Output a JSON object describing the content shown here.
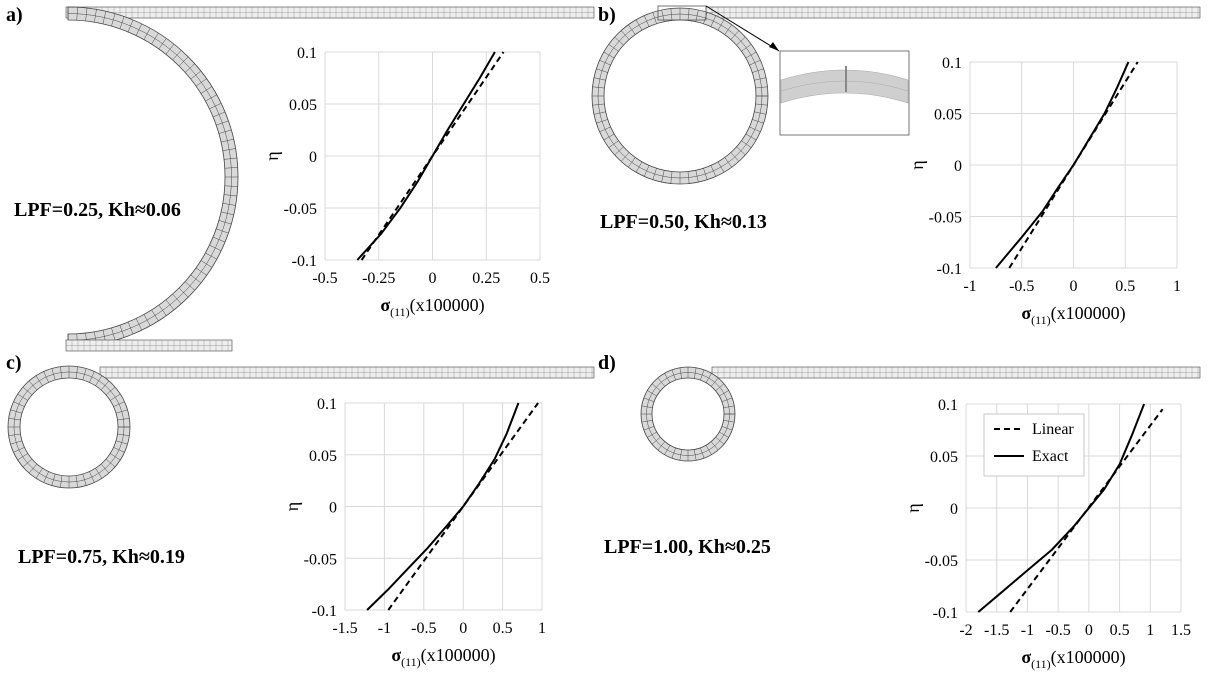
{
  "panels": [
    {
      "id": "a",
      "letter": "a)",
      "label": "LPF=0.25, Kh≈0.06"
    },
    {
      "id": "b",
      "letter": "b)",
      "label": "LPF=0.50, Kh≈0.13"
    },
    {
      "id": "c",
      "letter": "c)",
      "label": "LPF=0.75, Kh≈0.19"
    },
    {
      "id": "d",
      "letter": "d)",
      "label": "LPF=1.00, Kh≈0.25"
    }
  ],
  "colors": {
    "mesh_fill": "#d9d9d9",
    "mesh_line": "#444444",
    "grid": "#d9d9d9",
    "curve": "#000000"
  },
  "chart_data": [
    {
      "panel": "a",
      "type": "line",
      "xlabel_main": "σ",
      "xlabel_sub": "(11)",
      "xlabel_rest": "(x100000)",
      "ylabel": "η",
      "xlim": [
        -0.5,
        0.5
      ],
      "ylim": [
        -0.1,
        0.1
      ],
      "xticks": [
        -0.5,
        -0.25,
        0,
        0.25,
        0.5
      ],
      "xtick_labels": [
        "-0.5",
        "-0.25",
        "0",
        "0.25",
        "0.5"
      ],
      "yticks": [
        0.1,
        0.05,
        0,
        -0.05,
        -0.1
      ],
      "ytick_labels": [
        "0.1",
        "0.05",
        "0",
        "-0.05",
        "-0.1"
      ],
      "grid": true,
      "legend": false,
      "series": [
        {
          "name": "Linear",
          "style": "dashed",
          "points": [
            [
              -0.33,
              -0.1
            ],
            [
              0.33,
              0.1
            ]
          ]
        },
        {
          "name": "Exact",
          "style": "solid",
          "points": [
            [
              -0.35,
              -0.1
            ],
            [
              -0.24,
              -0.075
            ],
            [
              -0.15,
              -0.05
            ],
            [
              -0.07,
              -0.025
            ],
            [
              0,
              0
            ],
            [
              0.07,
              0.025
            ],
            [
              0.145,
              0.05
            ],
            [
              0.22,
              0.075
            ],
            [
              0.29,
              0.1
            ]
          ]
        }
      ]
    },
    {
      "panel": "b",
      "type": "line",
      "xlabel_main": "σ",
      "xlabel_sub": "(11)",
      "xlabel_rest": "(x100000)",
      "ylabel": "η",
      "xlim": [
        -1,
        1
      ],
      "ylim": [
        -0.1,
        0.1
      ],
      "xticks": [
        -1,
        -0.5,
        0,
        0.5,
        1
      ],
      "xtick_labels": [
        "-1",
        "-0.5",
        "0",
        "0.5",
        "1"
      ],
      "yticks": [
        0.1,
        0.05,
        0,
        -0.05,
        -0.1
      ],
      "ytick_labels": [
        "0.1",
        "0.05",
        "0",
        "-0.05",
        "-0.1"
      ],
      "grid": true,
      "legend": false,
      "series": [
        {
          "name": "Linear",
          "style": "dashed",
          "points": [
            [
              -0.62,
              -0.1
            ],
            [
              0.62,
              0.1
            ]
          ]
        },
        {
          "name": "Exact",
          "style": "solid",
          "points": [
            [
              -0.75,
              -0.1
            ],
            [
              -0.5,
              -0.07
            ],
            [
              -0.3,
              -0.045
            ],
            [
              -0.15,
              -0.022
            ],
            [
              0,
              0
            ],
            [
              0.15,
              0.025
            ],
            [
              0.3,
              0.05
            ],
            [
              0.42,
              0.075
            ],
            [
              0.53,
              0.1
            ]
          ]
        }
      ]
    },
    {
      "panel": "c",
      "type": "line",
      "xlabel_main": "σ",
      "xlabel_sub": "(11)",
      "xlabel_rest": "(x100000)",
      "ylabel": "η",
      "xlim": [
        -1.5,
        1
      ],
      "ylim": [
        -0.1,
        0.1
      ],
      "xticks": [
        -1.5,
        -1,
        -0.5,
        0,
        0.5,
        1
      ],
      "xtick_labels": [
        "-1.5",
        "-1",
        "-0.5",
        "0",
        "0.5",
        "1"
      ],
      "yticks": [
        0.1,
        0.05,
        0,
        -0.05,
        -0.1
      ],
      "ytick_labels": [
        "0.1",
        "0.05",
        "0",
        "-0.05",
        "-0.1"
      ],
      "grid": true,
      "legend": false,
      "series": [
        {
          "name": "Linear",
          "style": "dashed",
          "points": [
            [
              -0.95,
              -0.1
            ],
            [
              0.95,
              0.1
            ]
          ]
        },
        {
          "name": "Exact",
          "style": "solid",
          "points": [
            [
              -1.22,
              -0.1
            ],
            [
              -0.95,
              -0.08
            ],
            [
              -0.7,
              -0.06
            ],
            [
              -0.45,
              -0.04
            ],
            [
              -0.2,
              -0.018
            ],
            [
              0,
              0
            ],
            [
              0.2,
              0.022
            ],
            [
              0.4,
              0.046
            ],
            [
              0.55,
              0.07
            ],
            [
              0.7,
              0.1
            ]
          ]
        }
      ]
    },
    {
      "panel": "d",
      "type": "line",
      "xlabel_main": "σ",
      "xlabel_sub": "(11)",
      "xlabel_rest": "(x100000)",
      "ylabel": "η",
      "xlim": [
        -2,
        1.5
      ],
      "ylim": [
        -0.1,
        0.1
      ],
      "xticks": [
        -2,
        -1.5,
        -1,
        -0.5,
        0,
        0.5,
        1,
        1.5
      ],
      "xtick_labels": [
        "-2",
        "-1.5",
        "-1",
        "-0.5",
        "0",
        "0.5",
        "1",
        "1.5"
      ],
      "yticks": [
        0.1,
        0.05,
        0,
        -0.05,
        -0.1
      ],
      "ytick_labels": [
        "0.1",
        "0.05",
        "0",
        "-0.05",
        "-0.1"
      ],
      "grid": true,
      "legend": true,
      "legend_position": "top-left",
      "legend_entries": [
        {
          "label": "Linear",
          "style": "dashed"
        },
        {
          "label": "Exact",
          "style": "solid"
        }
      ],
      "series": [
        {
          "name": "Linear",
          "style": "dashed",
          "points": [
            [
              -1.28,
              -0.1
            ],
            [
              1.2,
              0.095
            ]
          ]
        },
        {
          "name": "Exact",
          "style": "solid",
          "points": [
            [
              -1.8,
              -0.1
            ],
            [
              -1.4,
              -0.08
            ],
            [
              -1.0,
              -0.06
            ],
            [
              -0.6,
              -0.04
            ],
            [
              -0.25,
              -0.018
            ],
            [
              0,
              0
            ],
            [
              0.25,
              0.018
            ],
            [
              0.5,
              0.042
            ],
            [
              0.7,
              0.07
            ],
            [
              0.9,
              0.1
            ]
          ]
        }
      ]
    }
  ]
}
